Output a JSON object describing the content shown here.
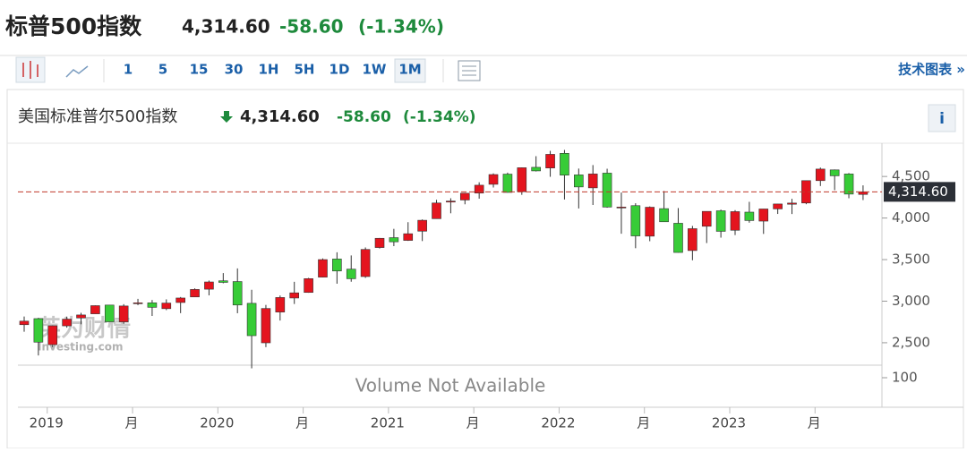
{
  "header": {
    "title": "标普500指数",
    "price": "4,314.60",
    "change": "-58.60",
    "change_pct": "(-1.34%)"
  },
  "toolbar": {
    "intervals": [
      "1",
      "5",
      "15",
      "30",
      "1H",
      "5H",
      "1D",
      "1W",
      "1M"
    ],
    "active": "1M",
    "link": "技术图表 »"
  },
  "chart_header": {
    "name": "美国标准普尔500指数",
    "price": "4,314.60",
    "change": "-58.60",
    "change_pct": "(-1.34%)",
    "info": "i"
  },
  "watermark": {
    "cn": "英为财情",
    "en": "Investing.com"
  },
  "chart_data": {
    "type": "candlestick",
    "categories": [
      null,
      null,
      "2019",
      null,
      null,
      null,
      null,
      null,
      "月",
      null,
      null,
      null,
      null,
      null,
      "2020",
      null,
      null,
      null,
      null,
      null,
      "月",
      null,
      null,
      null,
      null,
      null,
      "2021",
      null,
      null,
      null,
      null,
      null,
      "月",
      null,
      null,
      null,
      null,
      null,
      "2022",
      null,
      null,
      null,
      null,
      null,
      "月",
      null,
      null,
      null,
      null,
      null,
      "2023",
      null,
      null,
      null,
      null,
      null,
      "月",
      null,
      null,
      null
    ],
    "open": [
      2717,
      2790,
      2477,
      2703,
      2798,
      2848,
      2953,
      2751,
      2971,
      2980,
      2910,
      2984,
      3051,
      3144,
      3245,
      3236,
      2974,
      2499,
      2869,
      3038,
      3105,
      3289,
      3507,
      3385,
      3296,
      3645,
      3764,
      3731,
      3842,
      3992,
      4192,
      4217,
      4300,
      4406,
      4528,
      4317,
      4610,
      4602,
      4778,
      4519,
      4363,
      4540,
      4130,
      4149,
      3782,
      4113,
      3937,
      3609,
      3901,
      4087,
      3853,
      4071,
      3963,
      4110,
      4166,
      4181,
      4450,
      4579,
      4530,
      4284
    ],
    "high": [
      2815,
      2800,
      2708,
      2814,
      2860,
      2949,
      2954,
      2964,
      3028,
      3014,
      3022,
      3050,
      3154,
      3248,
      3338,
      3394,
      3137,
      2955,
      3068,
      3233,
      3280,
      3514,
      3588,
      3550,
      3646,
      3760,
      3870,
      3950,
      3983,
      4219,
      4238,
      4302,
      4430,
      4537,
      4546,
      4608,
      4744,
      4808,
      4819,
      4595,
      4637,
      4593,
      4307,
      4178,
      4140,
      4325,
      4120,
      3905,
      4080,
      4101,
      4095,
      4195,
      4110,
      4170,
      4231,
      4449,
      4607,
      4584,
      4541,
      4393
    ],
    "low": [
      2632,
      2347,
      2444,
      2681,
      2722,
      2848,
      2751,
      2728,
      2952,
      2822,
      2892,
      2856,
      3050,
      3070,
      3215,
      2855,
      2192,
      2447,
      2767,
      2966,
      3101,
      3285,
      3210,
      3234,
      3280,
      3633,
      3662,
      3725,
      3723,
      3992,
      4057,
      4165,
      4233,
      4367,
      4306,
      4279,
      4560,
      4496,
      4223,
      4115,
      4157,
      4124,
      3811,
      3637,
      3721,
      3955,
      3584,
      3492,
      3699,
      3764,
      3795,
      3944,
      3809,
      4049,
      4048,
      4166,
      4385,
      4335,
      4238,
      4216
    ],
    "close": [
      2760,
      2507,
      2704,
      2784,
      2834,
      2946,
      2752,
      2942,
      2980,
      2926,
      2977,
      3038,
      3141,
      3231,
      3226,
      2954,
      2585,
      2912,
      3044,
      3100,
      3271,
      3500,
      3363,
      3270,
      3622,
      3756,
      3714,
      3811,
      3973,
      4181,
      4204,
      4298,
      4395,
      4523,
      4308,
      4605,
      4567,
      4766,
      4516,
      4374,
      4530,
      4132,
      4132,
      3785,
      4130,
      3955,
      3586,
      3872,
      4080,
      3840,
      4077,
      3970,
      4109,
      4169,
      4180,
      4450,
      4589,
      4508,
      4288,
      4315
    ],
    "up_color": "#e4141e",
    "down_color": "#37cc37",
    "ylim": [
      2230,
      4900
    ],
    "yticks": [
      {
        "value": 2500,
        "label": "2,500"
      },
      {
        "value": 3000,
        "label": "3,000"
      },
      {
        "value": 3500,
        "label": "3,500"
      },
      {
        "value": 4000,
        "label": "4,000"
      },
      {
        "value": 4500,
        "label": "4,500"
      }
    ],
    "last": {
      "value": 4314.6,
      "label": "4,314.60"
    },
    "last_color": "#c0392b",
    "volume_note": "Volume Not Available",
    "volume_yticks": [
      100
    ]
  }
}
